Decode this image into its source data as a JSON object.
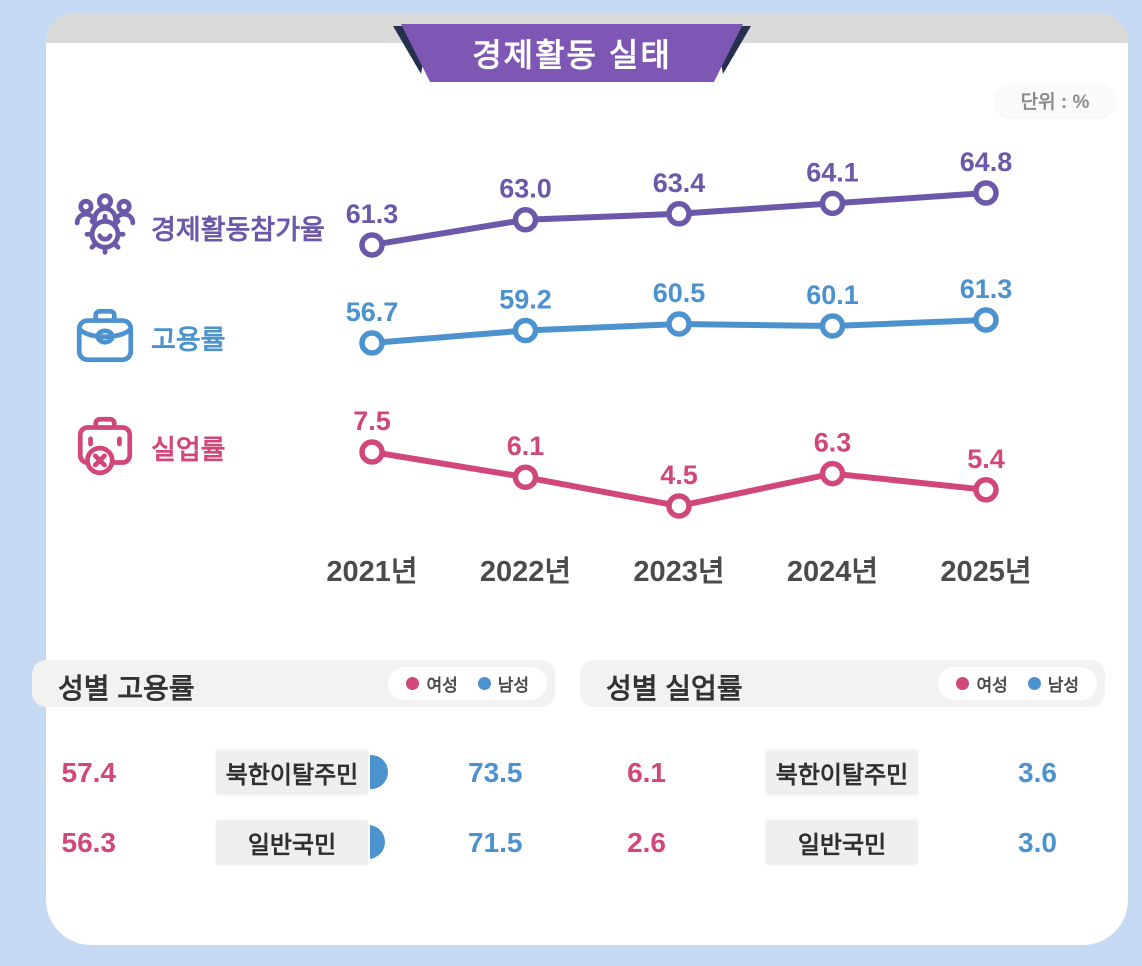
{
  "title_banner": "경제활동 실태",
  "unit_badge": "단위 : %",
  "colors": {
    "background": "#c5d9f2",
    "card": "#ffffff",
    "top_band": "#d9d9d9",
    "ribbon": "#7e57b5",
    "ribbon_fold": "#25304f",
    "participation_purple": "#6b58a8",
    "employment_blue": "#4b92cf",
    "unemployment_pink": "#d2477b",
    "axis_text": "#4b4b4b"
  },
  "chart_data": {
    "type": "line",
    "title": "경제활동 실태",
    "unit": "%",
    "x": [
      "2021년",
      "2022년",
      "2023년",
      "2024년",
      "2025년"
    ],
    "legend_position": "left",
    "grid": false,
    "series": [
      {
        "name": "경제활동참가율",
        "icon": "people-gear-icon",
        "color": "#6b58a8",
        "values": [
          61.3,
          63.0,
          63.4,
          64.1,
          64.8
        ],
        "labels": [
          "61.3",
          "63.0",
          "63.4",
          "64.1",
          "64.8"
        ]
      },
      {
        "name": "고용률",
        "icon": "briefcase-icon",
        "color": "#4b92cf",
        "values": [
          56.7,
          59.2,
          60.5,
          60.1,
          61.3
        ],
        "labels": [
          "56.7",
          "59.2",
          "60.5",
          "60.1",
          "61.3"
        ]
      },
      {
        "name": "실업률",
        "icon": "briefcase-x-icon",
        "color": "#d2477b",
        "values": [
          7.5,
          6.1,
          4.5,
          6.3,
          5.4
        ],
        "labels": [
          "7.5",
          "6.1",
          "4.5",
          "6.3",
          "5.4"
        ]
      }
    ]
  },
  "gender_panels": [
    {
      "title": "성별 고용률",
      "legend": [
        {
          "label": "여성",
          "color": "#d2477b"
        },
        {
          "label": "남성",
          "color": "#4b92cf"
        }
      ],
      "rows": [
        {
          "category": "북한이탈주민",
          "female": 57.4,
          "male": 73.5,
          "female_label": "57.4",
          "male_label": "73.5"
        },
        {
          "category": "일반국민",
          "female": 56.3,
          "male": 71.5,
          "female_label": "56.3",
          "male_label": "71.5"
        }
      ]
    },
    {
      "title": "성별 실업률",
      "legend": [
        {
          "label": "여성",
          "color": "#d2477b"
        },
        {
          "label": "남성",
          "color": "#4b92cf"
        }
      ],
      "rows": [
        {
          "category": "북한이탈주민",
          "female": 6.1,
          "male": 3.6,
          "female_label": "6.1",
          "male_label": "3.6"
        },
        {
          "category": "일반국민",
          "female": 2.6,
          "male": 3.0,
          "female_label": "2.6",
          "male_label": "3.0"
        }
      ]
    }
  ]
}
